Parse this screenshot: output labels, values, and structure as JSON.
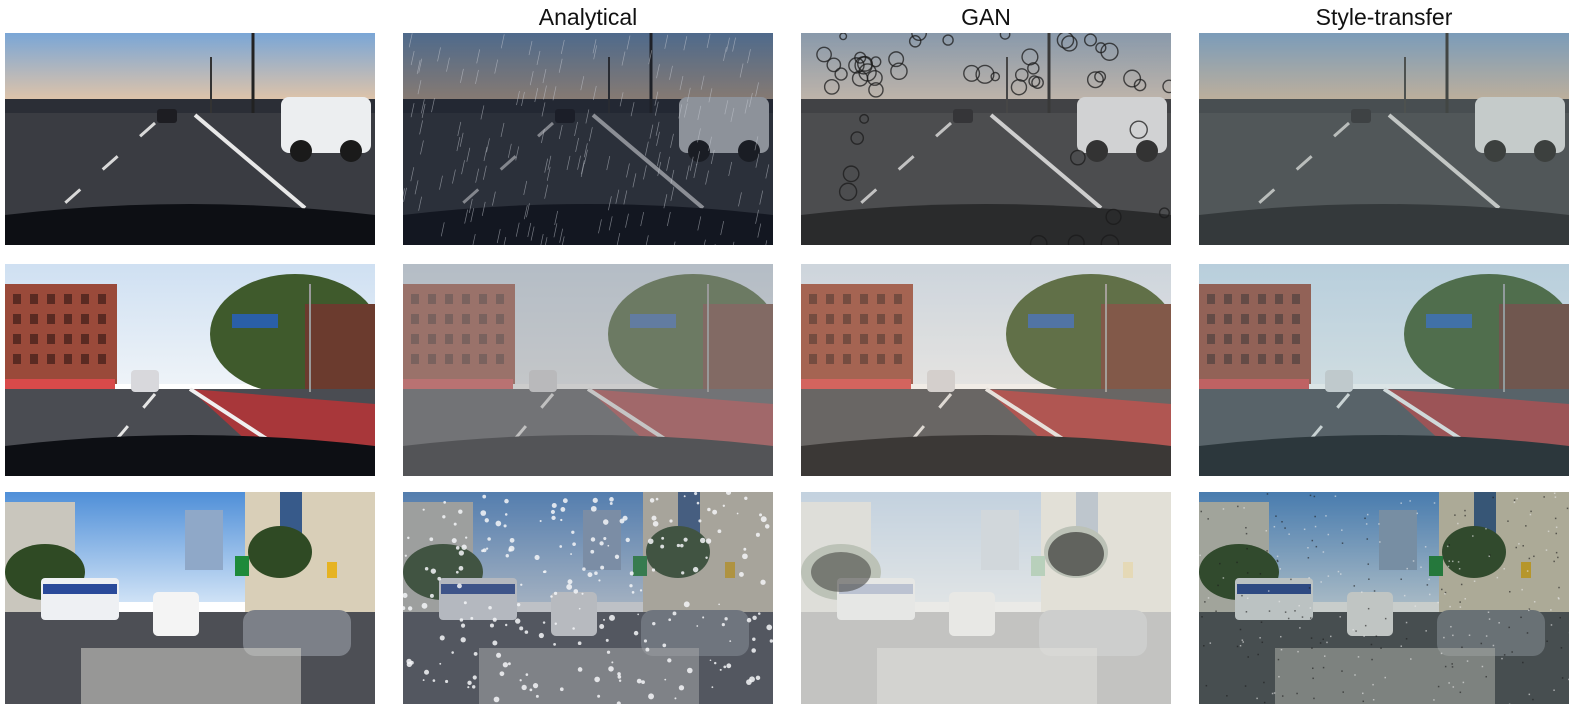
{
  "column_headers": [
    "",
    "Analytical",
    "GAN",
    "Style-transfer"
  ],
  "rows": [
    {
      "scene": "highway-sunset",
      "tiles": [
        {
          "condition": "clear",
          "effect": "none"
        },
        {
          "condition": "rain-streaks",
          "effect": "rain"
        },
        {
          "condition": "raindrops-on-lens",
          "effect": "droplets"
        },
        {
          "condition": "desaturated-overcast",
          "effect": "overcast"
        }
      ]
    },
    {
      "scene": "city-street-bus-lane",
      "tiles": [
        {
          "condition": "clear",
          "effect": "none"
        },
        {
          "condition": "fog-haze",
          "effect": "fog"
        },
        {
          "condition": "muted-warm",
          "effect": "warm"
        },
        {
          "condition": "cool-tint",
          "effect": "cool"
        }
      ]
    },
    {
      "scene": "urban-traffic-bus",
      "tiles": [
        {
          "condition": "clear",
          "effect": "none"
        },
        {
          "condition": "snowfall",
          "effect": "snowfall"
        },
        {
          "condition": "heavy-snow-cover",
          "effect": "snowcover"
        },
        {
          "condition": "noisy-texture",
          "effect": "noise"
        }
      ]
    }
  ],
  "colors": {
    "sky_sunset_top": "#7aa6d6",
    "sky_sunset_bottom": "#f2c9a0",
    "road_dark": "#3a3c42",
    "bus_lane_red": "#a8373a",
    "building_brick": "#9a4a3a",
    "sky_blue": "#4f8fd8"
  }
}
